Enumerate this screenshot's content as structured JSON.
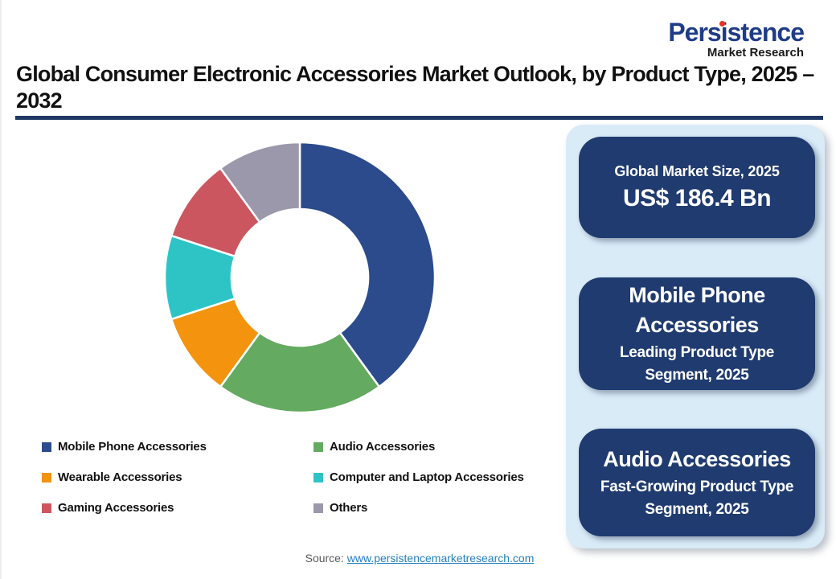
{
  "logo": {
    "brand": "Persistence",
    "sub": "Market Research",
    "brand_color": "#1f3c87",
    "dot_color": "#e63229"
  },
  "header": {
    "title": "Global Consumer Electronic Accessories Market Outlook, by Product Type, 2025 – 2032",
    "rule_color": "#1f3864"
  },
  "chart_data": {
    "type": "pie",
    "donut": true,
    "inner_radius_ratio": 0.5,
    "start_angle_deg": 0,
    "direction": "clockwise",
    "title": "Global Consumer Electronic Accessories Market Outlook, by Product Type, 2025 – 2032",
    "categories": [
      "Mobile Phone Accessories",
      "Audio Accessories",
      "Wearable Accessories",
      "Computer and Laptop Accessories",
      "Gaming Accessories",
      "Others"
    ],
    "values": [
      40,
      20,
      10,
      10,
      10,
      10
    ],
    "values_note": "approximate % share estimated from arc angles",
    "colors": [
      "#2b4b8c",
      "#64aa60",
      "#f3930e",
      "#2ec4c6",
      "#cc5660",
      "#9b98ab"
    ],
    "legend_position": "bottom"
  },
  "legend": {
    "items": [
      {
        "label": "Mobile Phone Accessories",
        "color": "#2b4b8c"
      },
      {
        "label": "Wearable Accessories",
        "color": "#f3930e"
      },
      {
        "label": "Gaming Accessories",
        "color": "#cc5660"
      },
      {
        "label": "Audio Accessories",
        "color": "#64aa60"
      },
      {
        "label": "Computer and Laptop Accessories",
        "color": "#2ec4c6"
      },
      {
        "label": "Others",
        "color": "#9b98ab"
      }
    ]
  },
  "panel": {
    "background": "#d8ebf7",
    "card_background": "#1f3b70",
    "cards": [
      {
        "title": "Global Market Size, 2025",
        "value": "US$ 186.4 Bn"
      },
      {
        "title": "Mobile Phone Accessories",
        "subtitle": "Leading Product Type Segment, 2025"
      },
      {
        "title": "Audio Accessories",
        "subtitle": "Fast-Growing Product Type Segment, 2025"
      }
    ]
  },
  "source": {
    "label": "Source: ",
    "link": "www.persistencemarketresearch.com"
  }
}
